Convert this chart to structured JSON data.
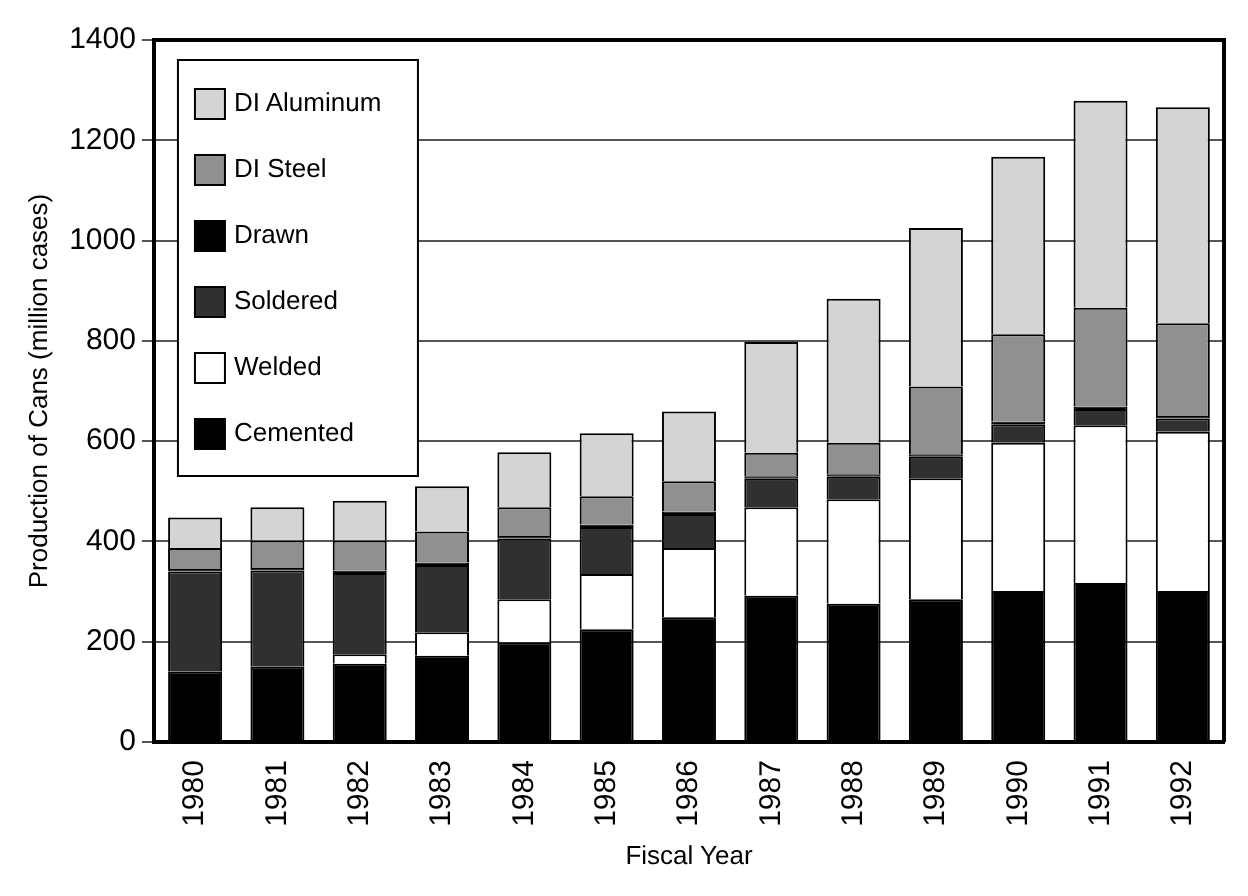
{
  "chart_data": {
    "type": "bar",
    "stacked": true,
    "xlabel": "Fiscal Year",
    "ylabel": "Production of Cans (million cases)",
    "categories": [
      "1980",
      "1981",
      "1982",
      "1983",
      "1984",
      "1985",
      "1986",
      "1987",
      "1988",
      "1989",
      "1990",
      "1991",
      "1992"
    ],
    "series": [
      {
        "name": "Cemented",
        "color": "#000000",
        "values": [
          140,
          150,
          156,
          172,
          199,
          225,
          249,
          292,
          276,
          285,
          301,
          317,
          301
        ]
      },
      {
        "name": "Welded",
        "color": "#ffffff",
        "values": [
          0,
          0,
          19,
          47,
          86,
          110,
          138,
          176,
          208,
          241,
          296,
          315,
          318
        ]
      },
      {
        "name": "Soldered",
        "color": "#303030",
        "values": [
          200,
          192,
          162,
          134,
          121,
          94,
          68,
          57,
          45,
          43,
          37,
          32,
          26
        ]
      },
      {
        "name": "Drawn",
        "color": "#000000",
        "values": [
          5,
          5,
          5,
          5,
          5,
          5,
          5,
          5,
          5,
          5,
          5,
          5,
          5
        ]
      },
      {
        "name": "DI Steel",
        "color": "#909090",
        "values": [
          42,
          55,
          60,
          62,
          57,
          56,
          60,
          47,
          63,
          135,
          174,
          197,
          185
        ]
      },
      {
        "name": "DI Aluminum",
        "color": "#d4d4d4",
        "values": [
          61,
          66,
          79,
          90,
          110,
          126,
          139,
          221,
          287,
          316,
          354,
          413,
          431
        ]
      }
    ],
    "ylim": [
      0,
      1400
    ],
    "yticks": [
      0,
      200,
      400,
      600,
      800,
      1000,
      1200,
      1400
    ],
    "grid": "y",
    "legend": "top left"
  }
}
